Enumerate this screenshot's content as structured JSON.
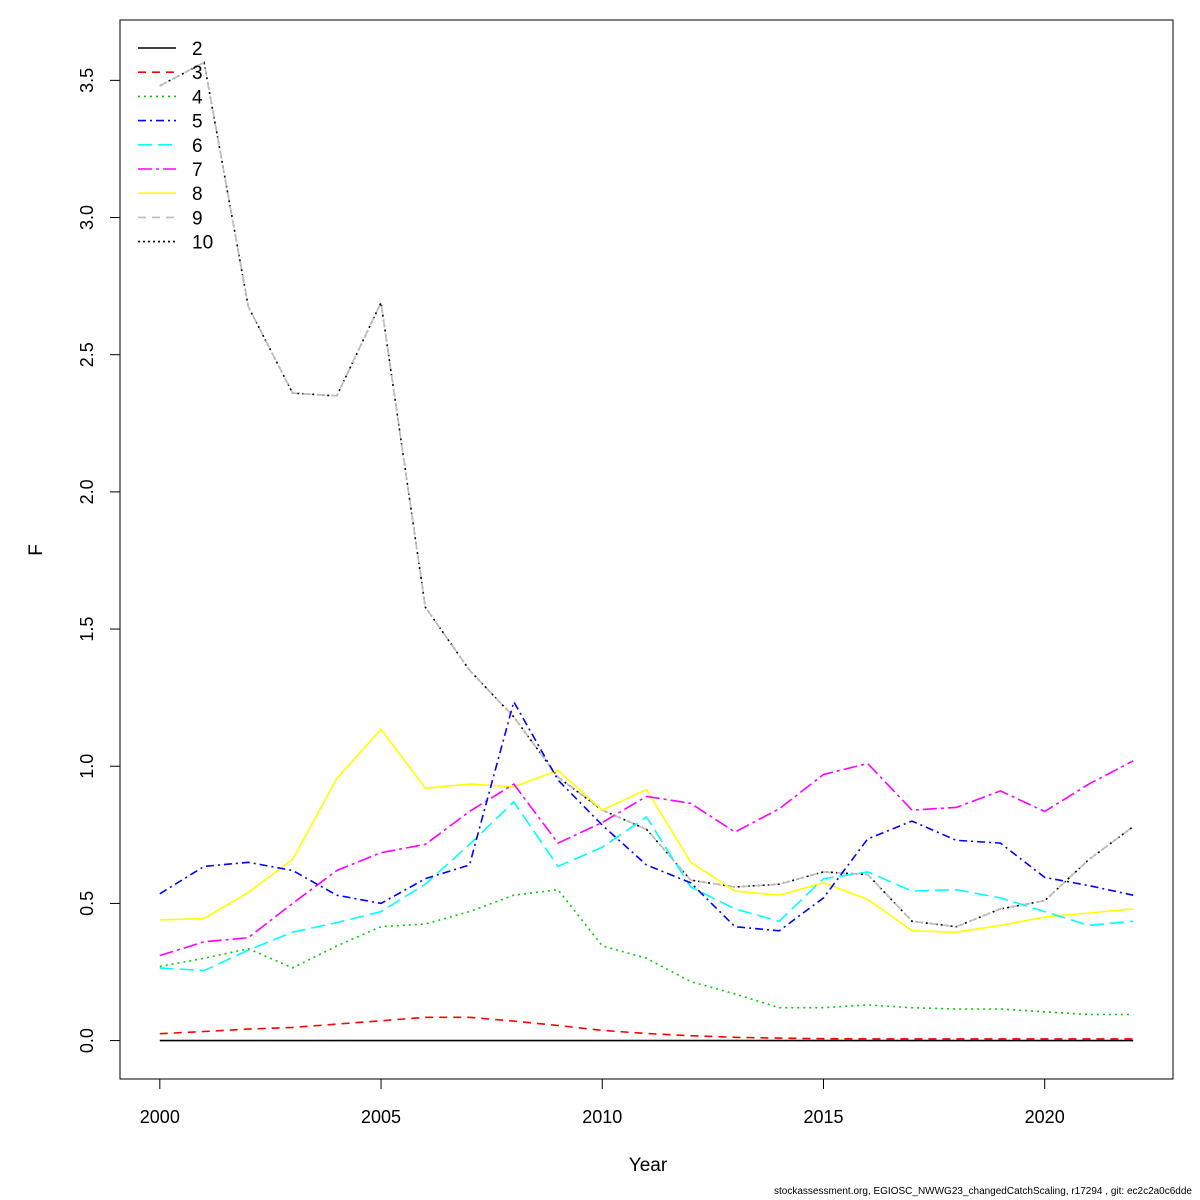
{
  "footer": "stockassessment.org, EGIOSC_NWWG23_changedCatchScaling, r17294 , git: ec2c2a0c6dde",
  "chart_data": {
    "type": "line",
    "title": "",
    "xlabel": "Year",
    "ylabel": "F",
    "xlim": [
      1999.1,
      2022.9
    ],
    "ylim": [
      -0.14,
      3.72
    ],
    "xticks": [
      2000,
      2005,
      2010,
      2015,
      2020
    ],
    "yticks": [
      0.0,
      0.5,
      1.0,
      1.5,
      2.0,
      2.5,
      3.0,
      3.5
    ],
    "ytick_labels": [
      "0.0",
      "0.5",
      "1.0",
      "1.5",
      "2.0",
      "2.5",
      "3.0",
      "3.5"
    ],
    "legend_position": "top-left",
    "x": [
      2000,
      2001,
      2002,
      2003,
      2004,
      2005,
      2006,
      2007,
      2008,
      2009,
      2010,
      2011,
      2012,
      2013,
      2014,
      2015,
      2016,
      2017,
      2018,
      2019,
      2020,
      2021,
      2022
    ],
    "series": [
      {
        "name": "2",
        "color": "#000000",
        "dash": "",
        "values": [
          0,
          0,
          0,
          0,
          0,
          0,
          0,
          0,
          0,
          0,
          0,
          0,
          0,
          0,
          0,
          0,
          0,
          0,
          0,
          0,
          0,
          0,
          0
        ]
      },
      {
        "name": "3",
        "color": "#FF0000",
        "dash": "8,6",
        "values": [
          0.025,
          0.033,
          0.042,
          0.048,
          0.06,
          0.072,
          0.085,
          0.085,
          0.071,
          0.055,
          0.037,
          0.026,
          0.018,
          0.012,
          0.009,
          0.007,
          0.006,
          0.006,
          0.006,
          0.006,
          0.006,
          0.006,
          0.006
        ]
      },
      {
        "name": "4",
        "color": "#00CD00",
        "dash": "2,4",
        "values": [
          0.27,
          0.3,
          0.335,
          0.265,
          0.345,
          0.415,
          0.425,
          0.47,
          0.53,
          0.55,
          0.345,
          0.3,
          0.215,
          0.17,
          0.12,
          0.12,
          0.13,
          0.12,
          0.115,
          0.115,
          0.105,
          0.095,
          0.095
        ]
      },
      {
        "name": "5",
        "color": "#0000FF",
        "dash": "8,4,2,4",
        "values": [
          0.535,
          0.635,
          0.65,
          0.62,
          0.53,
          0.5,
          0.59,
          0.64,
          1.235,
          0.95,
          0.785,
          0.64,
          0.575,
          0.415,
          0.4,
          0.52,
          0.735,
          0.8,
          0.73,
          0.72,
          0.595,
          0.565,
          0.53
        ]
      },
      {
        "name": "6",
        "color": "#00FFFF",
        "dash": "14,6",
        "values": [
          0.265,
          0.255,
          0.33,
          0.395,
          0.43,
          0.47,
          0.57,
          0.715,
          0.87,
          0.635,
          0.705,
          0.815,
          0.56,
          0.48,
          0.435,
          0.59,
          0.615,
          0.545,
          0.55,
          0.52,
          0.47,
          0.42,
          0.435
        ]
      },
      {
        "name": "7",
        "color": "#FF00FF",
        "dash": "14,4,3,4",
        "values": [
          0.31,
          0.36,
          0.375,
          0.5,
          0.62,
          0.685,
          0.715,
          0.835,
          0.935,
          0.72,
          0.795,
          0.89,
          0.865,
          0.76,
          0.845,
          0.97,
          1.01,
          0.84,
          0.85,
          0.91,
          0.835,
          0.935,
          1.02
        ]
      },
      {
        "name": "8",
        "color": "#FFFF00",
        "dash": "",
        "values": [
          0.44,
          0.445,
          0.54,
          0.66,
          0.955,
          1.135,
          0.92,
          0.935,
          0.925,
          0.985,
          0.84,
          0.915,
          0.65,
          0.545,
          0.53,
          0.575,
          0.515,
          0.4,
          0.395,
          0.42,
          0.45,
          0.465,
          0.48
        ]
      },
      {
        "name": "9",
        "color": "#BEBEBE",
        "dash": "8,6",
        "values": [
          3.48,
          3.565,
          2.675,
          2.36,
          2.35,
          2.69,
          1.58,
          1.35,
          1.18,
          0.96,
          0.84,
          0.77,
          0.585,
          0.56,
          0.57,
          0.615,
          0.605,
          0.435,
          0.415,
          0.48,
          0.51,
          0.66,
          0.78
        ]
      },
      {
        "name": "10",
        "color": "#000000",
        "dash": "2,3",
        "values": [
          3.48,
          3.565,
          2.675,
          2.36,
          2.35,
          2.69,
          1.58,
          1.35,
          1.18,
          0.96,
          0.84,
          0.77,
          0.585,
          0.56,
          0.57,
          0.615,
          0.605,
          0.435,
          0.415,
          0.48,
          0.51,
          0.66,
          0.78
        ]
      }
    ]
  }
}
